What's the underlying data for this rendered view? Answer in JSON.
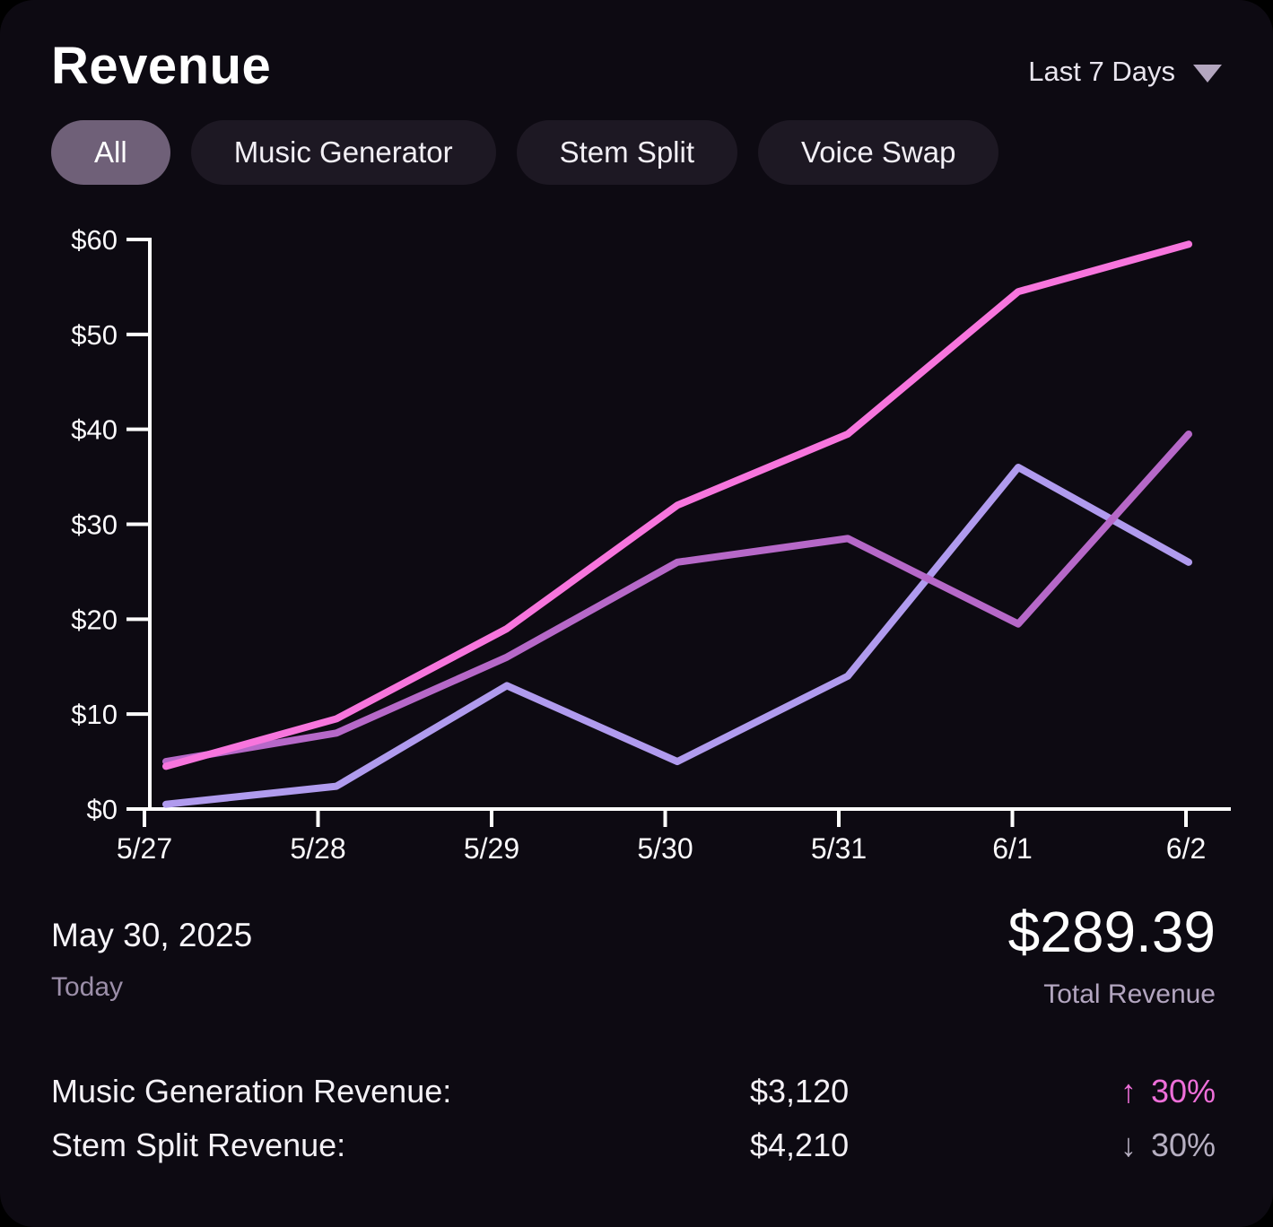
{
  "header": {
    "title": "Revenue",
    "range_label": "Last 7 Days"
  },
  "filters": [
    {
      "label": "All",
      "active": true
    },
    {
      "label": "Music Generator",
      "active": false
    },
    {
      "label": "Stem Split",
      "active": false
    },
    {
      "label": "Voice Swap",
      "active": false
    }
  ],
  "chart_data": {
    "type": "line",
    "x": [
      "5/27",
      "5/28",
      "5/29",
      "5/30",
      "5/31",
      "6/1",
      "6/2"
    ],
    "series": [
      {
        "name": "pink",
        "color": "#f775dd",
        "values": [
          4.5,
          9.5,
          19,
          32,
          39.5,
          54.5,
          59.5
        ]
      },
      {
        "name": "purple",
        "color": "#b668c8",
        "values": [
          5,
          8,
          16,
          26,
          28.5,
          19.5,
          39.5
        ]
      },
      {
        "name": "lavender",
        "color": "#b09bee",
        "values": [
          0.5,
          2.4,
          13,
          5,
          14,
          36,
          26
        ]
      }
    ],
    "ylim": [
      0,
      60
    ],
    "ytick_labels": [
      "$0",
      "$10",
      "$20",
      "$30",
      "$40",
      "$50",
      "$60"
    ],
    "xlabel": "",
    "ylabel": "",
    "grid": false,
    "legend": "none",
    "axis_color": "#ffffff",
    "tick_label_color": "#fbfafc"
  },
  "summary": {
    "date": "May 30, 2025",
    "date_caption": "Today",
    "total_value": "$289.39",
    "total_label": "Total Revenue"
  },
  "metrics": [
    {
      "label": "Music Generation Revenue:",
      "value": "$3,120",
      "arrow": "↑",
      "change": "30%",
      "color": "#ee6fd9"
    },
    {
      "label": "Stem Split Revenue:",
      "value": "$4,210",
      "arrow": "↓",
      "change": "30%",
      "color": "#b6afc1"
    }
  ],
  "colors": {
    "page_background": "#000000",
    "card_background": "#0d0a12",
    "active_pill_background": "#6f6078",
    "inactive_pill_background": "#1d1823",
    "muted_text": "#9c8fa9",
    "muted_text_light": "#b3a6c0",
    "accent_pink": "#f775dd",
    "accent_purple": "#b668c8",
    "accent_lavender": "#b09bee"
  }
}
